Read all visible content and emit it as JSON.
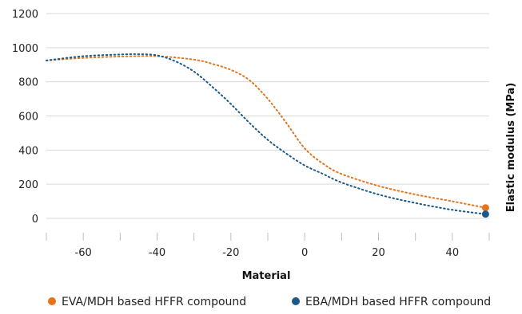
{
  "chart_data": {
    "type": "line",
    "title": "",
    "xlabel": "Material",
    "ylabel": "Elastic modulus (MPa)",
    "xlim": [
      -70,
      50
    ],
    "ylim": [
      0,
      1200
    ],
    "x_ticks": [
      -60,
      -40,
      -20,
      0,
      20,
      40
    ],
    "y_ticks": [
      0,
      200,
      400,
      600,
      800,
      1000,
      1200
    ],
    "grid": "horizontal",
    "legend_position": "bottom",
    "series": [
      {
        "name": "EVA/MDH based HFFR compound",
        "color": "#e8731a",
        "x": [
          -70,
          -60,
          -50,
          -40,
          -30,
          -25,
          -20,
          -15,
          -10,
          -5,
          0,
          5,
          10,
          20,
          30,
          40,
          49
        ],
        "y": [
          925,
          940,
          948,
          950,
          930,
          905,
          870,
          810,
          700,
          560,
          410,
          320,
          260,
          190,
          140,
          100,
          62
        ]
      },
      {
        "name": "EBA/MDH based HFFR compound",
        "color": "#1a5a8a",
        "x": [
          -70,
          -60,
          -50,
          -45,
          -40,
          -35,
          -30,
          -25,
          -20,
          -15,
          -10,
          -5,
          0,
          5,
          10,
          20,
          30,
          40,
          49
        ],
        "y": [
          925,
          950,
          960,
          962,
          955,
          920,
          860,
          770,
          670,
          560,
          460,
          380,
          310,
          260,
          210,
          140,
          90,
          50,
          25
        ]
      }
    ]
  }
}
